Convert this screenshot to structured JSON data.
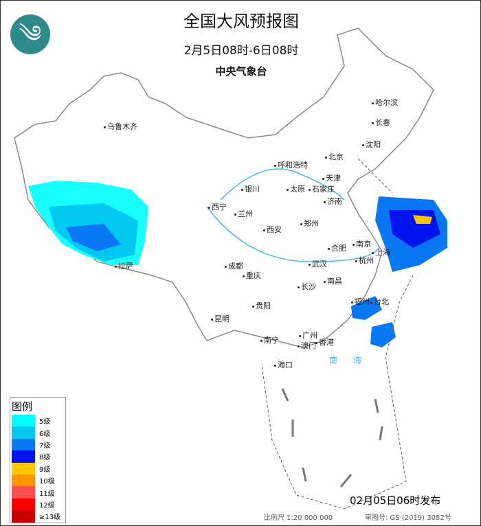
{
  "header": {
    "title": "全国大风预报图",
    "period": "2月5日08时-6日08时",
    "organization": "中央气象台"
  },
  "legend": {
    "title": "图例",
    "items": [
      {
        "label": "5级",
        "color": "#00ffff"
      },
      {
        "label": "6级",
        "color": "#00c8f0"
      },
      {
        "label": "7级",
        "color": "#0a78f5"
      },
      {
        "label": "8级",
        "color": "#0014f0"
      },
      {
        "label": "9级",
        "color": "#ffc800"
      },
      {
        "label": "10级",
        "color": "#ff9600"
      },
      {
        "label": "11级",
        "color": "#ff5050"
      },
      {
        "label": "12级",
        "color": "#ff0000"
      },
      {
        "label": "≥13级",
        "color": "#c80000"
      }
    ]
  },
  "cities": [
    "乌鲁木齐",
    "哈尔滨",
    "长春",
    "沈阳",
    "北京",
    "天津",
    "呼和浩特",
    "太原",
    "石家庄",
    "济南",
    "银川",
    "西宁",
    "兰州",
    "郑州",
    "西安",
    "合肥",
    "南京",
    "上海",
    "杭州",
    "成都",
    "武汉",
    "重庆",
    "拉萨",
    "长沙",
    "南昌",
    "福州",
    "台北",
    "贵阳",
    "昆明",
    "南宁",
    "广州",
    "香港",
    "澳门",
    "海口"
  ],
  "seas": [
    "南",
    "海"
  ],
  "footer": {
    "issued": "02月05日06时发布",
    "scale": "比例尺 1:20 000 000",
    "review_number": "审图号: GS (2019) 3082号"
  }
}
